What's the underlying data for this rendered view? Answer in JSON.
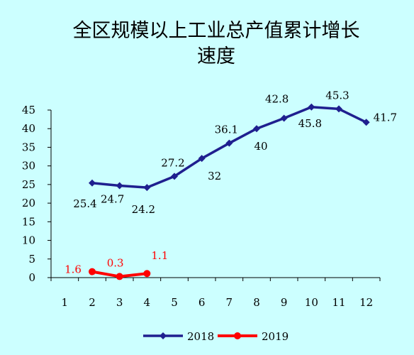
{
  "chart_data": {
    "type": "line",
    "title_line1": "全区规模以上工业总产值累计增长",
    "title_line2": "速度",
    "xlabel": "",
    "ylabel": "",
    "categories": [
      "1",
      "2",
      "3",
      "4",
      "5",
      "6",
      "7",
      "8",
      "9",
      "10",
      "11",
      "12"
    ],
    "yticks": [
      "0",
      "5",
      "10",
      "15",
      "20",
      "25",
      "30",
      "35",
      "40",
      "45"
    ],
    "ylim": [
      0,
      45
    ],
    "grid": false,
    "legend_position": "bottom",
    "series": [
      {
        "name": "2018",
        "color": "#1F1F8F",
        "marker": "diamond",
        "x": [
          "2",
          "3",
          "4",
          "5",
          "6",
          "7",
          "8",
          "9",
          "10",
          "11",
          "12"
        ],
        "values": [
          25.4,
          24.7,
          24.2,
          27.2,
          32,
          36.1,
          40,
          42.8,
          45.8,
          45.3,
          41.7
        ],
        "labels": [
          "25.4",
          "24.7",
          "24.2",
          "27.2",
          "32",
          "36.1",
          "40",
          "42.8",
          "45.8",
          "45.3",
          "41.7"
        ]
      },
      {
        "name": "2019",
        "color": "#FF0000",
        "marker": "circle",
        "x": [
          "2",
          "3",
          "4"
        ],
        "values": [
          1.6,
          0.3,
          1.1
        ],
        "labels": [
          "1.6",
          "0.3",
          "1.1"
        ]
      }
    ]
  }
}
